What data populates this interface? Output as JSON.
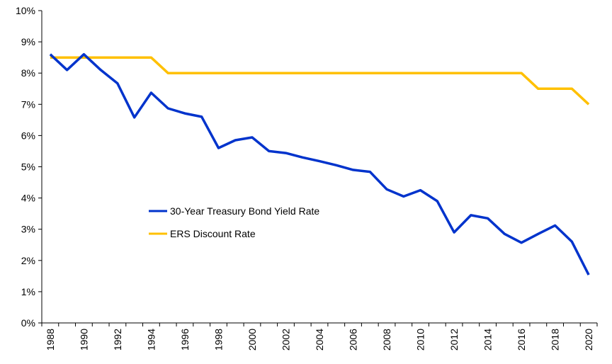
{
  "chart_data": {
    "type": "line",
    "title": "",
    "xlabel": "",
    "ylabel": "",
    "ylim": [
      0,
      10
    ],
    "y_ticks": [
      "0%",
      "1%",
      "2%",
      "3%",
      "4%",
      "5%",
      "6%",
      "7%",
      "8%",
      "9%",
      "10%"
    ],
    "x": [
      1988,
      1989,
      1990,
      1991,
      1992,
      1993,
      1994,
      1995,
      1996,
      1997,
      1998,
      1999,
      2000,
      2001,
      2002,
      2003,
      2004,
      2005,
      2006,
      2007,
      2008,
      2009,
      2010,
      2011,
      2012,
      2013,
      2014,
      2015,
      2016,
      2017,
      2018,
      2019,
      2020
    ],
    "x_tick_labels": [
      "1988",
      "1990",
      "1992",
      "1994",
      "1996",
      "1998",
      "2000",
      "2002",
      "2004",
      "2006",
      "2008",
      "2010",
      "2012",
      "2014",
      "2016",
      "2018",
      "2020"
    ],
    "grid": false,
    "legend_placement": "center-left",
    "series": [
      {
        "name": "30-Year Treasury Bond Yield Rate",
        "color": "#0033CC",
        "values": [
          8.6,
          8.1,
          8.6,
          8.1,
          7.67,
          6.58,
          7.37,
          6.87,
          6.71,
          6.6,
          5.6,
          5.85,
          5.94,
          5.5,
          5.44,
          5.3,
          5.18,
          5.05,
          4.9,
          4.84,
          4.28,
          4.05,
          4.25,
          3.9,
          2.9,
          3.45,
          3.35,
          2.85,
          2.57,
          2.85,
          3.12,
          2.6,
          1.54
        ]
      },
      {
        "name": "ERS Discount Rate",
        "color": "#FFC000",
        "values": [
          8.5,
          8.5,
          8.5,
          8.5,
          8.5,
          8.5,
          8.5,
          8.0,
          8.0,
          8.0,
          8.0,
          8.0,
          8.0,
          8.0,
          8.0,
          8.0,
          8.0,
          8.0,
          8.0,
          8.0,
          8.0,
          8.0,
          8.0,
          8.0,
          8.0,
          8.0,
          8.0,
          8.0,
          8.0,
          7.5,
          7.5,
          7.5,
          7.0
        ]
      }
    ]
  }
}
